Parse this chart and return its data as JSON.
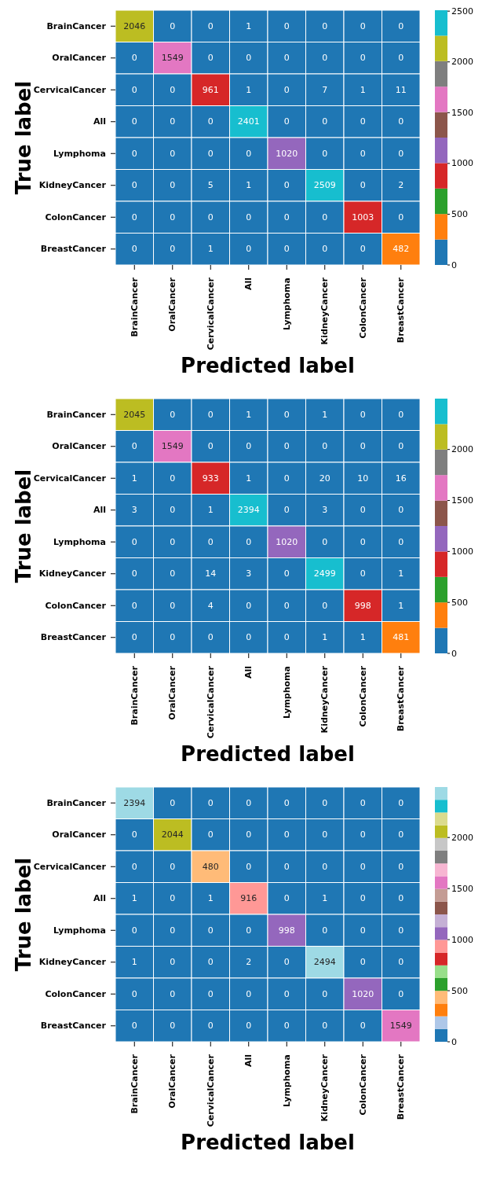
{
  "chart_data": [
    {
      "type": "heatmap",
      "xlabel": "Predicted label",
      "ylabel": "True label",
      "categories": [
        "BrainCancer",
        "OralCancer",
        "CervicalCancer",
        "All",
        "Lymphoma",
        "KidneyCancer",
        "ColonCancer",
        "BreastCancer"
      ],
      "y_categories": [
        "BrainCancer",
        "OralCancer",
        "CervicalCancer",
        "All",
        "Lymphoma",
        "KidneyCancer",
        "ColonCancer",
        "BreastCancer"
      ],
      "cells": [
        [
          2046,
          0,
          0,
          1,
          0,
          0,
          0,
          0
        ],
        [
          0,
          1549,
          0,
          0,
          0,
          0,
          0,
          0
        ],
        [
          0,
          0,
          961,
          1,
          0,
          7,
          1,
          11
        ],
        [
          0,
          0,
          0,
          2401,
          0,
          0,
          0,
          0
        ],
        [
          0,
          0,
          0,
          0,
          1020,
          0,
          0,
          0
        ],
        [
          0,
          0,
          5,
          1,
          0,
          2509,
          0,
          2
        ],
        [
          0,
          0,
          0,
          0,
          0,
          0,
          1003,
          0
        ],
        [
          0,
          0,
          1,
          0,
          0,
          0,
          0,
          482
        ]
      ],
      "clim": [
        0,
        2509
      ],
      "cticks": [
        0,
        500,
        1000,
        1500,
        2000,
        2500
      ],
      "data_labels": true,
      "colors": [
        "#1f77b4",
        "#ff7f0e",
        "#2ca02c",
        "#d62728",
        "#9467bd",
        "#8c564b",
        "#e377c2",
        "#7f7f7f",
        "#bcbd22",
        "#17becf"
      ]
    },
    {
      "type": "heatmap",
      "xlabel": "Predicted label",
      "ylabel": "True label",
      "categories": [
        "BrainCancer",
        "OralCancer",
        "CervicalCancer",
        "All",
        "Lymphoma",
        "KidneyCancer",
        "ColonCancer",
        "BreastCancer"
      ],
      "y_categories": [
        "BrainCancer",
        "OralCancer",
        "CervicalCancer",
        "All",
        "Lymphoma",
        "KidneyCancer",
        "ColonCancer",
        "BreastCancer"
      ],
      "cells": [
        [
          2045,
          0,
          0,
          1,
          0,
          1,
          0,
          0
        ],
        [
          0,
          1549,
          0,
          0,
          0,
          0,
          0,
          0
        ],
        [
          1,
          0,
          933,
          1,
          0,
          20,
          10,
          16
        ],
        [
          3,
          0,
          1,
          2394,
          0,
          3,
          0,
          0
        ],
        [
          0,
          0,
          0,
          0,
          1020,
          0,
          0,
          0
        ],
        [
          0,
          0,
          14,
          3,
          0,
          2499,
          0,
          1
        ],
        [
          0,
          0,
          4,
          0,
          0,
          0,
          998,
          1
        ],
        [
          0,
          0,
          0,
          0,
          0,
          1,
          1,
          481
        ]
      ],
      "clim": [
        0,
        2499
      ],
      "cticks": [
        0,
        500,
        1000,
        1500,
        2000
      ],
      "data_labels": true,
      "colors": [
        "#1f77b4",
        "#ff7f0e",
        "#2ca02c",
        "#d62728",
        "#9467bd",
        "#8c564b",
        "#e377c2",
        "#7f7f7f",
        "#bcbd22",
        "#17becf"
      ]
    },
    {
      "type": "heatmap",
      "xlabel": "Predicted label",
      "ylabel": "True label",
      "categories": [
        "BrainCancer",
        "OralCancer",
        "CervicalCancer",
        "All",
        "Lymphoma",
        "KidneyCancer",
        "ColonCancer",
        "BreastCancer"
      ],
      "y_categories": [
        "BrainCancer",
        "OralCancer",
        "CervicalCancer",
        "All",
        "Lymphoma",
        "KidneyCancer",
        "ColonCancer",
        "BreastCancer"
      ],
      "cells": [
        [
          2394,
          0,
          0,
          0,
          0,
          0,
          0,
          0
        ],
        [
          0,
          2044,
          0,
          0,
          0,
          0,
          0,
          0
        ],
        [
          0,
          0,
          480,
          0,
          0,
          0,
          0,
          0
        ],
        [
          1,
          0,
          1,
          916,
          0,
          1,
          0,
          0
        ],
        [
          0,
          0,
          0,
          0,
          998,
          0,
          0,
          0
        ],
        [
          1,
          0,
          0,
          2,
          0,
          2494,
          0,
          0
        ],
        [
          0,
          0,
          0,
          0,
          0,
          0,
          1020,
          0
        ],
        [
          0,
          0,
          0,
          0,
          0,
          0,
          0,
          1549
        ]
      ],
      "clim": [
        0,
        2494
      ],
      "cticks": [
        0,
        500,
        1000,
        1500,
        2000
      ],
      "data_labels": true,
      "colors": [
        "#1f77b4",
        "#aec7e8",
        "#ff7f0e",
        "#ffbb78",
        "#2ca02c",
        "#98df8a",
        "#d62728",
        "#ff9896",
        "#9467bd",
        "#c5b0d5",
        "#8c564b",
        "#c49c94",
        "#e377c2",
        "#f7b6d2",
        "#7f7f7f",
        "#c7c7c7",
        "#bcbd22",
        "#dbdb8d",
        "#17becf",
        "#9edae5"
      ]
    }
  ]
}
